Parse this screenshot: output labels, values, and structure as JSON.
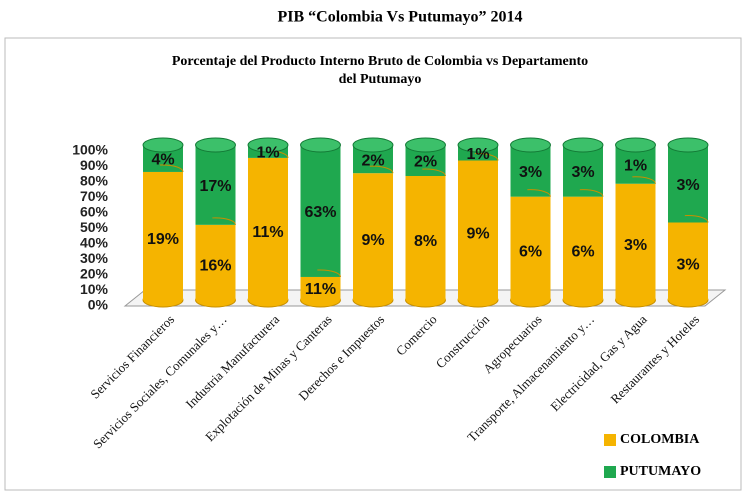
{
  "chart_data": {
    "type": "bar",
    "stacked": "percent",
    "title": "PIB “Colombia Vs Putumayo” 2014",
    "subtitle": [
      "Porcentaje del Producto Interno Bruto de Colombia vs Departamento",
      "del Putumayo"
    ],
    "categories": [
      "Servicios Financieros",
      "Servicios Sociales, Comunales y…",
      "Industria Manufacturera",
      "Explotación de Minas y Canteras",
      "Derechos e Impuestos",
      "Comercio",
      "Construcción",
      "Agropecuarios",
      "Transporte, Almacenamiento y…",
      "Electricidad, Gas y Agua",
      "Restaurantes y Hoteles"
    ],
    "series": [
      {
        "name": "COLOMBIA",
        "color": "#f5b400",
        "values": [
          19,
          16,
          11,
          11,
          9,
          8,
          9,
          6,
          6,
          3,
          3
        ],
        "value_labels": [
          "19%",
          "16%",
          "11%",
          "11%",
          "9%",
          "8%",
          "9%",
          "6%",
          "6%",
          "3%",
          "3%"
        ]
      },
      {
        "name": "PUTUMAYO",
        "color": "#1fa84f",
        "values": [
          4,
          17,
          1,
          63,
          2,
          2,
          1,
          3,
          3,
          1,
          3
        ],
        "value_labels": [
          "4%",
          "17%",
          "1%",
          "63%",
          "2%",
          "2%",
          "1%",
          "3%",
          "3%",
          "1%",
          "3%"
        ]
      }
    ],
    "ylim": [
      0,
      100
    ],
    "yticks": [
      {
        "value": 0,
        "label": "0%"
      },
      {
        "value": 10,
        "label": "10%"
      },
      {
        "value": 20,
        "label": "20%"
      },
      {
        "value": 30,
        "label": "30%"
      },
      {
        "value": 40,
        "label": "40%"
      },
      {
        "value": 50,
        "label": "50%"
      },
      {
        "value": 60,
        "label": "60%"
      },
      {
        "value": 70,
        "label": "70%"
      },
      {
        "value": 80,
        "label": "80%"
      },
      {
        "value": 90,
        "label": "90%"
      },
      {
        "value": 100,
        "label": "100%"
      }
    ],
    "legend": "bottom-right"
  }
}
